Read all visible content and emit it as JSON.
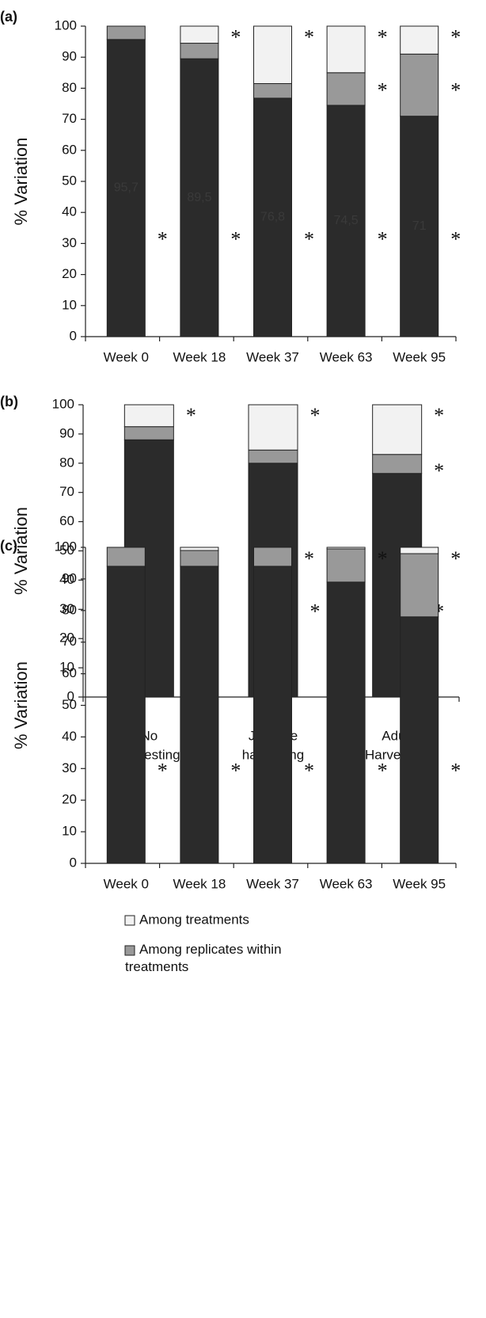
{
  "chart_data": [
    {
      "type": "bar",
      "stacked": true,
      "panel_label": "(a)",
      "y_label": "% Variation",
      "categories": [
        "Week 0",
        "Week 18",
        "Week 37",
        "Week 63",
        "Week 95"
      ],
      "series": [
        {
          "color": "#2b2b2b",
          "values": [
            95.7,
            89.5,
            76.8,
            74.5,
            71
          ],
          "value_labels": [
            "95,7",
            "89,5",
            "76,8",
            "74,5",
            "71"
          ]
        },
        {
          "color": "#999999",
          "values": [
            4.3,
            5,
            4.7,
            10.5,
            20
          ]
        },
        {
          "color": "#f2f2f2",
          "values": [
            0,
            5.5,
            18.5,
            15,
            9
          ]
        }
      ],
      "ylim": [
        0,
        100
      ],
      "yticks": [
        0,
        10,
        20,
        30,
        40,
        50,
        60,
        70,
        80,
        90,
        100
      ],
      "annotations": [
        {
          "text": "*",
          "x": "Week 0",
          "y": 32
        },
        {
          "text": "*",
          "x": "Week 18",
          "y": 97
        },
        {
          "text": "*",
          "x": "Week 18",
          "y": 32
        },
        {
          "text": "*",
          "x": "Week 37",
          "y": 97
        },
        {
          "text": "*",
          "x": "Week 37",
          "y": 32
        },
        {
          "text": "*",
          "x": "Week 63",
          "y": 97
        },
        {
          "text": "*",
          "x": "Week 63",
          "y": 80
        },
        {
          "text": "*",
          "x": "Week 63",
          "y": 32
        },
        {
          "text": "*",
          "x": "Week 95",
          "y": 97
        },
        {
          "text": "*",
          "x": "Week 95",
          "y": 80
        },
        {
          "text": "*",
          "x": "Week 95",
          "y": 32
        }
      ]
    },
    {
      "type": "bar",
      "stacked": true,
      "panel_label": "(b)",
      "y_label": "% Variation",
      "categories": [
        [
          "No",
          "harvesting"
        ],
        [
          "Juvenile",
          "harvesting"
        ],
        [
          "Adult",
          "Harvesting"
        ]
      ],
      "series": [
        {
          "color": "#2b2b2b",
          "values": [
            88,
            80,
            76.5
          ]
        },
        {
          "color": "#999999",
          "values": [
            4.5,
            4.5,
            6.5
          ]
        },
        {
          "color": "#f2f2f2",
          "values": [
            7.5,
            15.5,
            17
          ]
        }
      ],
      "ylim": [
        0,
        100
      ],
      "yticks": [
        0,
        10,
        20,
        30,
        40,
        50,
        60,
        70,
        80,
        90,
        100
      ],
      "annotations": [
        {
          "text": "*",
          "x": 0,
          "y": 97
        },
        {
          "text": "*",
          "x": 0,
          "y": 30
        },
        {
          "text": "*",
          "x": 1,
          "y": 97
        },
        {
          "text": "*",
          "x": 1,
          "y": 30
        },
        {
          "text": "*",
          "x": 2,
          "y": 97
        },
        {
          "text": "*",
          "x": 2,
          "y": 78
        },
        {
          "text": "*",
          "x": 2,
          "y": 30
        }
      ]
    },
    {
      "type": "bar",
      "stacked": true,
      "panel_label": "(c)",
      "y_label": "% Variation",
      "categories": [
        "Week 0",
        "Week 18",
        "Week 37",
        "Week 63",
        "Week 95"
      ],
      "series": [
        {
          "color": "#2b2b2b",
          "values": [
            94,
            94,
            94,
            89,
            78
          ]
        },
        {
          "name": "Among replicates within treatments",
          "color": "#999999",
          "values": [
            6,
            5,
            6,
            10.5,
            20
          ]
        },
        {
          "name": "Among treatments",
          "color": "#f2f2f2",
          "values": [
            0,
            1,
            0,
            0.5,
            2
          ]
        }
      ],
      "ylim": [
        0,
        100
      ],
      "yticks": [
        0,
        10,
        20,
        30,
        40,
        50,
        60,
        70,
        80,
        90,
        100
      ],
      "annotations": [
        {
          "text": "*",
          "x": "Week 0",
          "y": 30
        },
        {
          "text": "*",
          "x": "Week 18",
          "y": 30
        },
        {
          "text": "*",
          "x": "Week 37",
          "y": 97
        },
        {
          "text": "*",
          "x": "Week 37",
          "y": 30
        },
        {
          "text": "*",
          "x": "Week 63",
          "y": 97
        },
        {
          "text": "*",
          "x": "Week 63",
          "y": 30
        },
        {
          "text": "*",
          "x": "Week 95",
          "y": 97
        },
        {
          "text": "*",
          "x": "Week 95",
          "y": 30
        }
      ]
    }
  ]
}
